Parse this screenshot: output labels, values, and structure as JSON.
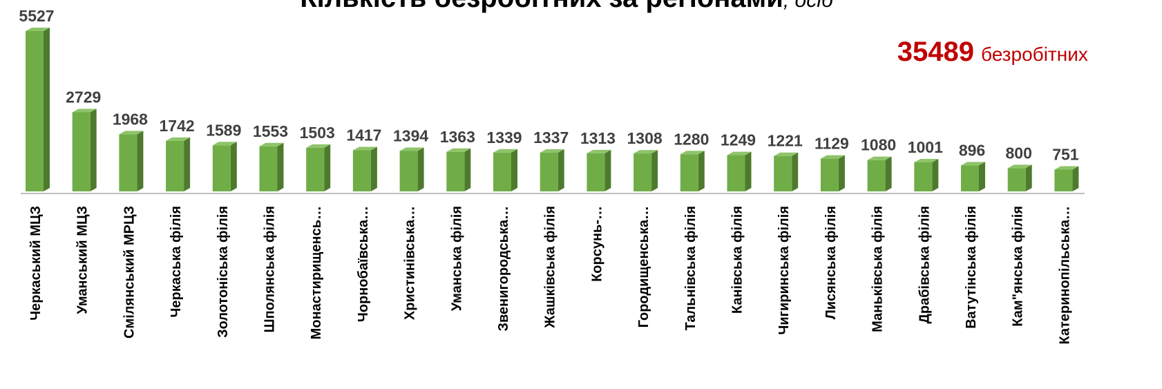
{
  "chart_data": {
    "type": "bar",
    "title": "Кількість безробітних за регіонами",
    "title_unit": ", осіб",
    "total": 35489,
    "total_label": "безробітних",
    "categories": [
      "Черкаський МЦЗ",
      "Уманський МЦЗ",
      "Смілянський МРЦЗ",
      "Черкаська філія",
      "Золотоніська філія",
      "Шполянська філія",
      "Монастирищенсь…",
      "Чорнобаївська…",
      "Христинівська…",
      "Уманська філія",
      "Звенигородська…",
      "Жашківська філія",
      "Корсунь-…",
      "Городищенська…",
      "Тальнівська філія",
      "Канівська філія",
      "Чигиринська філія",
      "Лисянська філія",
      "Маньківська філія",
      "Драбівська філія",
      "Ватутінська філія",
      "Кам\"янська філія",
      "Катеринопільська…"
    ],
    "values": [
      5527,
      2729,
      1968,
      1742,
      1589,
      1553,
      1503,
      1417,
      1394,
      1363,
      1339,
      1337,
      1313,
      1308,
      1280,
      1249,
      1221,
      1129,
      1080,
      1001,
      896,
      800,
      751
    ],
    "color": "#70ad47"
  }
}
